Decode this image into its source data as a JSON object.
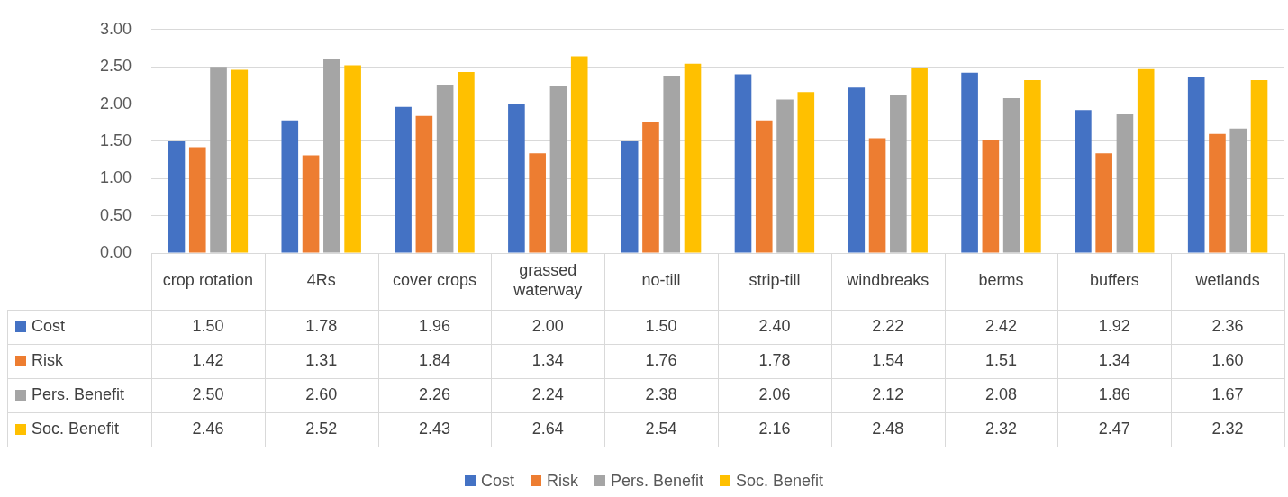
{
  "chart_data": {
    "type": "bar",
    "categories": [
      "crop rotation",
      "4Rs",
      "cover crops",
      "grassed waterway",
      "no-till",
      "strip-till",
      "windbreaks",
      "berms",
      "buffers",
      "wetlands"
    ],
    "series": [
      {
        "name": "Cost",
        "color": "#4472c4",
        "values": [
          1.5,
          1.78,
          1.96,
          2.0,
          1.5,
          2.4,
          2.22,
          2.42,
          1.92,
          2.36
        ],
        "value_labels": [
          "1.50",
          "1.78",
          "1.96",
          "2.00",
          "1.50",
          "2.40",
          "2.22",
          "2.42",
          "1.92",
          "2.36"
        ]
      },
      {
        "name": "Risk",
        "color": "#ed7d31",
        "values": [
          1.42,
          1.31,
          1.84,
          1.34,
          1.76,
          1.78,
          1.54,
          1.51,
          1.34,
          1.6
        ],
        "value_labels": [
          "1.42",
          "1.31",
          "1.84",
          "1.34",
          "1.76",
          "1.78",
          "1.54",
          "1.51",
          "1.34",
          "1.60"
        ]
      },
      {
        "name": "Pers. Benefit",
        "color": "#a5a5a5",
        "values": [
          2.5,
          2.6,
          2.26,
          2.24,
          2.38,
          2.06,
          2.12,
          2.08,
          1.86,
          1.67
        ],
        "value_labels": [
          "2.50",
          "2.60",
          "2.26",
          "2.24",
          "2.38",
          "2.06",
          "2.12",
          "2.08",
          "1.86",
          "1.67"
        ]
      },
      {
        "name": "Soc. Benefit",
        "color": "#ffc000",
        "values": [
          2.46,
          2.52,
          2.43,
          2.64,
          2.54,
          2.16,
          2.48,
          2.32,
          2.47,
          2.32
        ],
        "value_labels": [
          "2.46",
          "2.52",
          "2.43",
          "2.64",
          "2.54",
          "2.16",
          "2.48",
          "2.32",
          "2.47",
          "2.32"
        ]
      }
    ],
    "ylim": [
      0,
      3
    ],
    "yticks": [
      {
        "value": 0,
        "label": "0.00"
      },
      {
        "value": 0.5,
        "label": "0.50"
      },
      {
        "value": 1,
        "label": "1.00"
      },
      {
        "value": 1.5,
        "label": "1.50"
      },
      {
        "value": 2,
        "label": "2.00"
      },
      {
        "value": 2.5,
        "label": "2.50"
      },
      {
        "value": 3,
        "label": "3.00"
      }
    ],
    "grid": "y",
    "legend": "bottom"
  }
}
